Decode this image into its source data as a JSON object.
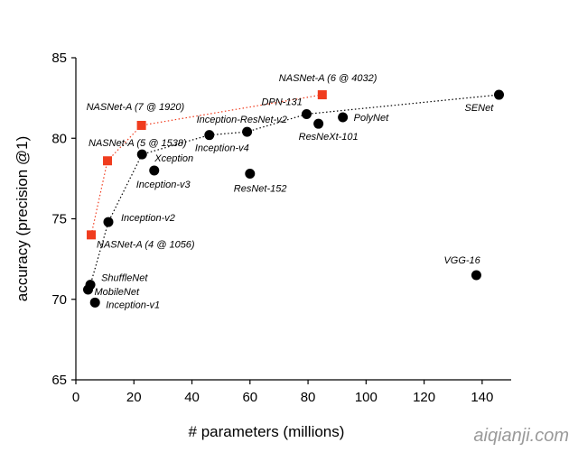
{
  "chart_data": {
    "type": "scatter",
    "xlabel": "# parameters (millions)",
    "ylabel": "accuracy (precision @1)",
    "xlim": [
      0,
      150
    ],
    "ylim": [
      65,
      85
    ],
    "xticks": [
      0,
      20,
      40,
      60,
      80,
      100,
      120,
      140
    ],
    "yticks": [
      65,
      70,
      75,
      80,
      85
    ],
    "grid": false,
    "series": [
      {
        "color": "#f03c1e",
        "marker": "square",
        "line": "dotted",
        "points": [
          {
            "label": "NASNet-A (4 @ 1056)",
            "x": 5.3,
            "y": 74.0
          },
          {
            "label": "NASNet-A (5 @ 1538)",
            "x": 10.9,
            "y": 78.6
          },
          {
            "label": "NASNet-A (7 @ 1920)",
            "x": 22.6,
            "y": 80.8
          },
          {
            "label": "NASNet-A (6 @ 4032)",
            "x": 84.9,
            "y": 82.7
          }
        ]
      },
      {
        "color": "#000000",
        "marker": "circle",
        "line": "dotted",
        "points": [
          {
            "label": "MobileNet",
            "x": 4.2,
            "y": 70.6
          },
          {
            "label": "ShuffleNet",
            "x": 5.0,
            "y": 70.9
          },
          {
            "label": "Inception-v1",
            "x": 6.6,
            "y": 69.8
          },
          {
            "label": "Inception-v2",
            "x": 11.2,
            "y": 74.8
          },
          {
            "label": "Xception",
            "x": 22.8,
            "y": 79.0
          },
          {
            "label": "Inception-v3",
            "x": 27.0,
            "y": 78.0
          },
          {
            "label": "Inception-v4",
            "x": 46.0,
            "y": 80.2
          },
          {
            "label": "Inception-ResNet-v2",
            "x": 59.0,
            "y": 80.4
          },
          {
            "label": "ResNet-152",
            "x": 60.0,
            "y": 77.8
          },
          {
            "label": "DPN-131",
            "x": 79.5,
            "y": 81.5
          },
          {
            "label": "ResNeXt-101",
            "x": 83.6,
            "y": 80.9
          },
          {
            "label": "PolyNet",
            "x": 92.0,
            "y": 81.3
          },
          {
            "label": "SENet",
            "x": 145.8,
            "y": 82.7
          },
          {
            "label": "VGG-16",
            "x": 138.0,
            "y": 71.5
          }
        ]
      }
    ],
    "frontier_order": [
      "MobileNet",
      "ShuffleNet",
      "Inception-v2",
      "Xception",
      "Inception-v4",
      "Inception-ResNet-v2",
      "DPN-131",
      "SENet"
    ]
  },
  "watermark": "aiqianji.com"
}
